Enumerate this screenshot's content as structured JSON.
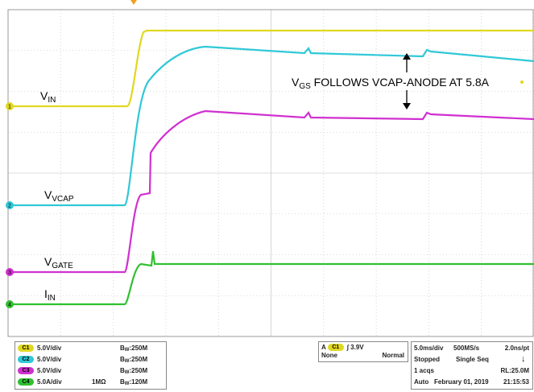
{
  "traces": [
    {
      "name": "vin",
      "channel": "1",
      "label": {
        "main": "V",
        "sub": "IN"
      }
    },
    {
      "name": "vvcap",
      "channel": "2",
      "label": {
        "main": "V",
        "sub": "VCAP"
      }
    },
    {
      "name": "vgate",
      "channel": "3",
      "label": {
        "main": "V",
        "sub": "GATE"
      }
    },
    {
      "name": "iin",
      "channel": "4",
      "label": {
        "main": "I",
        "sub": "IN"
      }
    }
  ],
  "annotation": {
    "main": "V",
    "sub": "GS",
    "rest": " FOLLOWS VCAP-ANODE AT 5.8A"
  },
  "channels": [
    {
      "badge": "C1",
      "scale": "5.0V/div",
      "impedance": "",
      "bw_main": "B",
      "bw_sub": "W",
      "bw": ":250M"
    },
    {
      "badge": "C2",
      "scale": "5.0V/div",
      "impedance": "",
      "bw_main": "B",
      "bw_sub": "W",
      "bw": ":250M"
    },
    {
      "badge": "C3",
      "scale": "5.0V/div",
      "impedance": "",
      "bw_main": "B",
      "bw_sub": "W",
      "bw": ":250M"
    },
    {
      "badge": "C4",
      "scale": "5.0A/div",
      "impedance": "1MΩ",
      "bw_main": "B",
      "bw_sub": "W",
      "bw": ":120M"
    }
  ],
  "trigger": {
    "mode_letter": "A",
    "source": "C1",
    "level": "3.9V",
    "coupling": "None",
    "mode": "Normal"
  },
  "acquisition": {
    "rows": [
      [
        "5.0ms/div",
        "500MS/s",
        "2.0ns/pt"
      ],
      [
        "Stopped",
        "Single Seq",
        ""
      ],
      [
        "1 acqs",
        "",
        "RL:25.0M"
      ],
      [
        "Auto",
        "February 01, 2019",
        "21:15:53"
      ]
    ]
  }
}
